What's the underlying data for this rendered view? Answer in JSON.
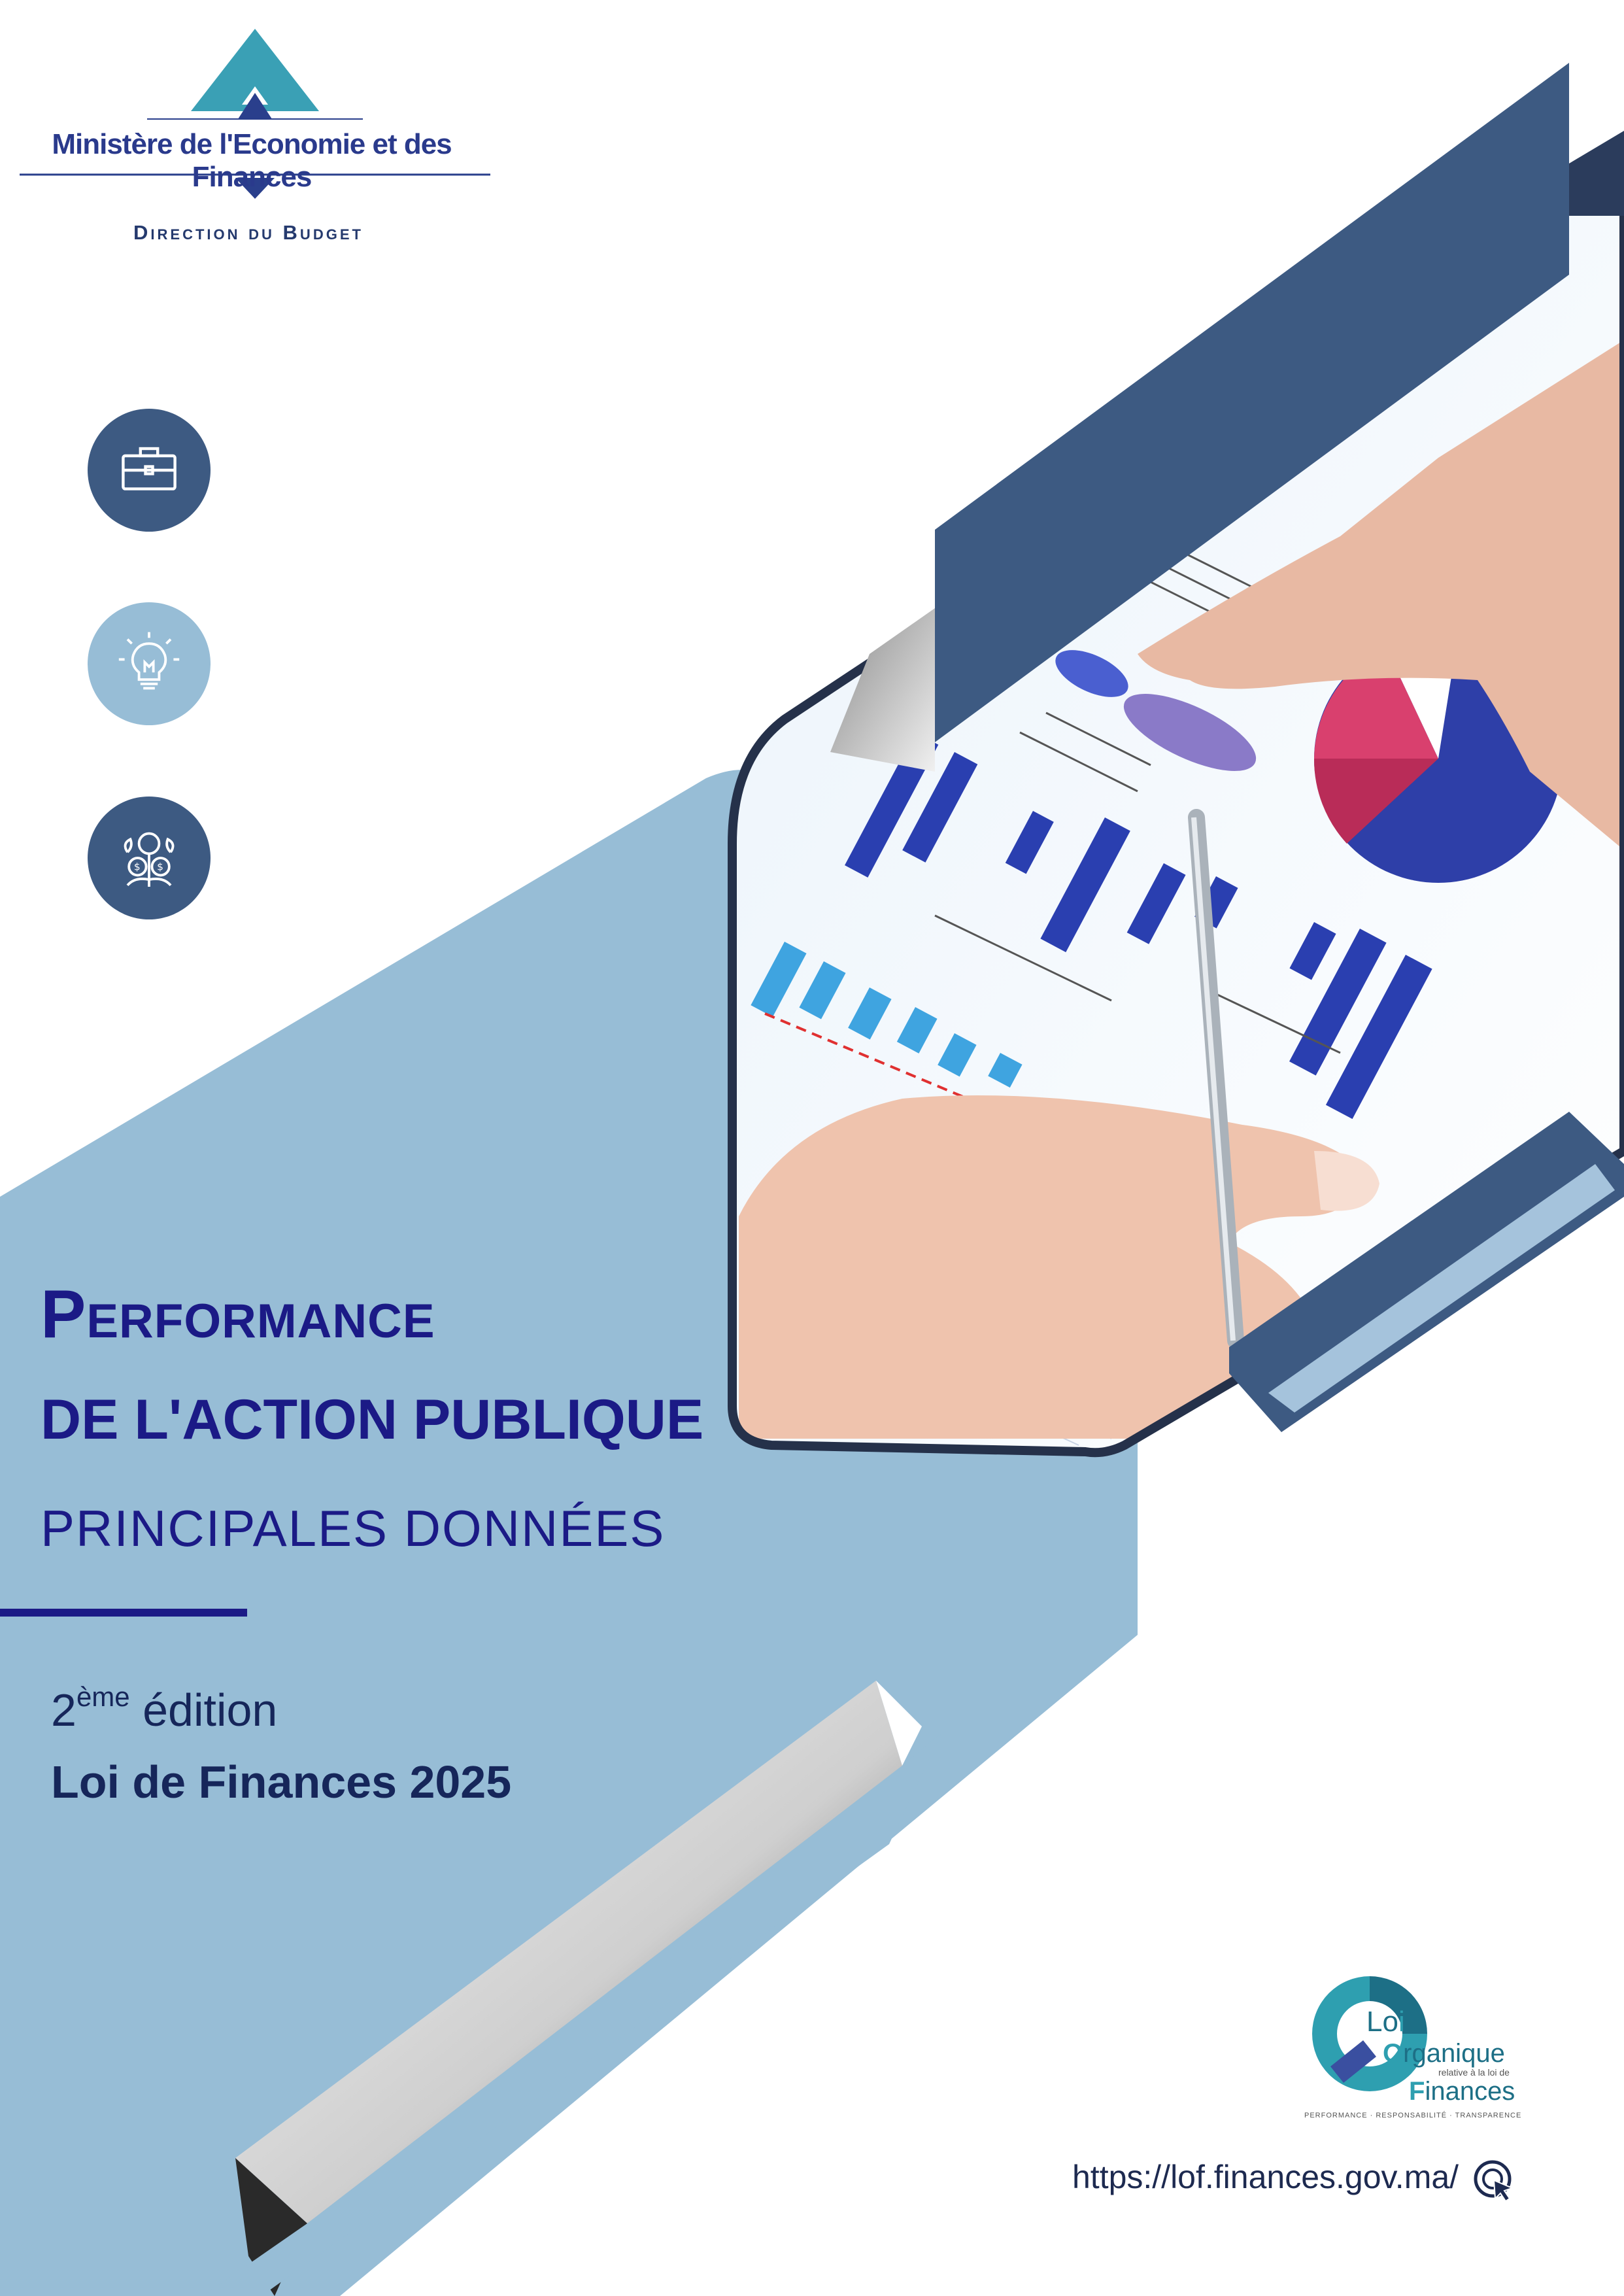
{
  "header": {
    "ministry": "Ministère de l'Economie et des Finances",
    "direction": "Direction du Budget"
  },
  "icons": [
    "briefcase-icon",
    "lightbulb-icon",
    "money-plant-icon"
  ],
  "title": {
    "line1": "Performance",
    "line2": "DE L'ACTION PUBLIQUE",
    "subtitle": "PRINCIPALES DONNÉES"
  },
  "edition": {
    "number": "2",
    "suffix": "ème",
    "word": " édition",
    "law": "Loi de Finances 2025"
  },
  "lof_logo": {
    "lo": "Lo",
    "i": "i",
    "organique": "rganique",
    "relative": "relative à la loi de",
    "finances": "inances",
    "tagline": "PERFORMANCE · RESPONSABILITÉ · TRANSPARENCE"
  },
  "footer": {
    "url": "https://lof.finances.gov.ma/"
  },
  "colors": {
    "navy": "#3d5a82",
    "light_blue": "#97bdd6",
    "title_blue": "#1b1a86",
    "accent_teal": "#2e9fb0"
  }
}
